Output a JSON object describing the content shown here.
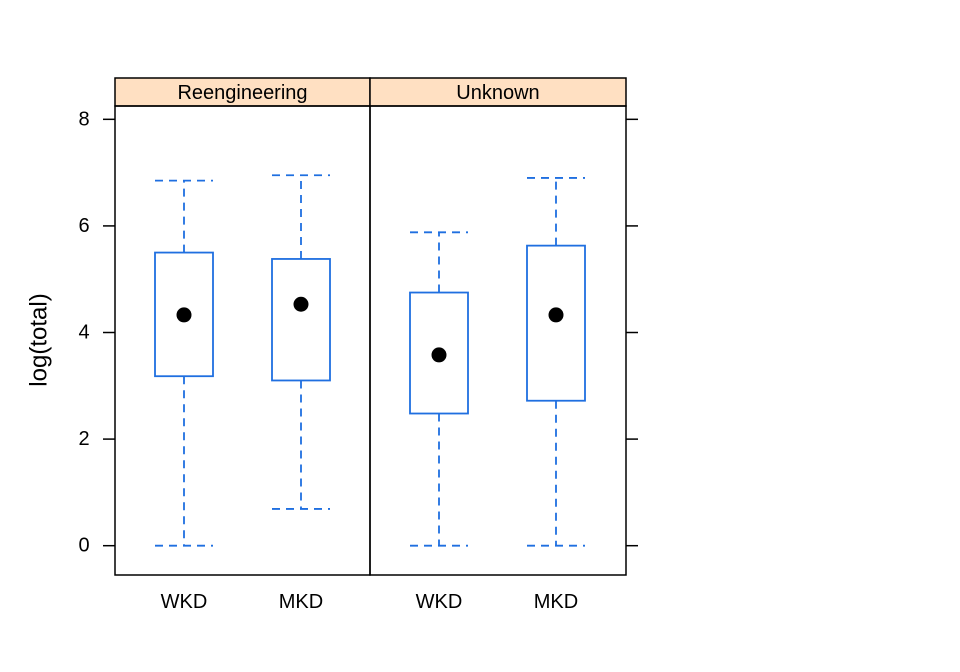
{
  "chart_data": {
    "type": "boxplot",
    "ylabel": "log(total)",
    "ylim": [
      -0.55,
      8.25
    ],
    "yticks": [
      0,
      2,
      4,
      6,
      8
    ],
    "categories": [
      "WKD",
      "MKD"
    ],
    "colors": {
      "box": "#1f6fe0",
      "median_dot": "#000000",
      "strip_fill": "#ffe0c2",
      "frame": "#000000"
    },
    "panels": [
      {
        "strip": "Reengineering",
        "boxes": [
          {
            "category": "WKD",
            "whisker_low": 0.0,
            "q1": 3.18,
            "median": 4.33,
            "q3": 5.5,
            "whisker_high": 6.85
          },
          {
            "category": "MKD",
            "whisker_low": 0.69,
            "q1": 3.1,
            "median": 4.53,
            "q3": 5.38,
            "whisker_high": 6.95
          }
        ]
      },
      {
        "strip": "Unknown",
        "boxes": [
          {
            "category": "WKD",
            "whisker_low": 0.0,
            "q1": 2.48,
            "median": 3.58,
            "q3": 4.75,
            "whisker_high": 5.88
          },
          {
            "category": "MKD",
            "whisker_low": 0.0,
            "q1": 2.72,
            "median": 4.33,
            "q3": 5.63,
            "whisker_high": 6.9
          }
        ]
      }
    ]
  }
}
